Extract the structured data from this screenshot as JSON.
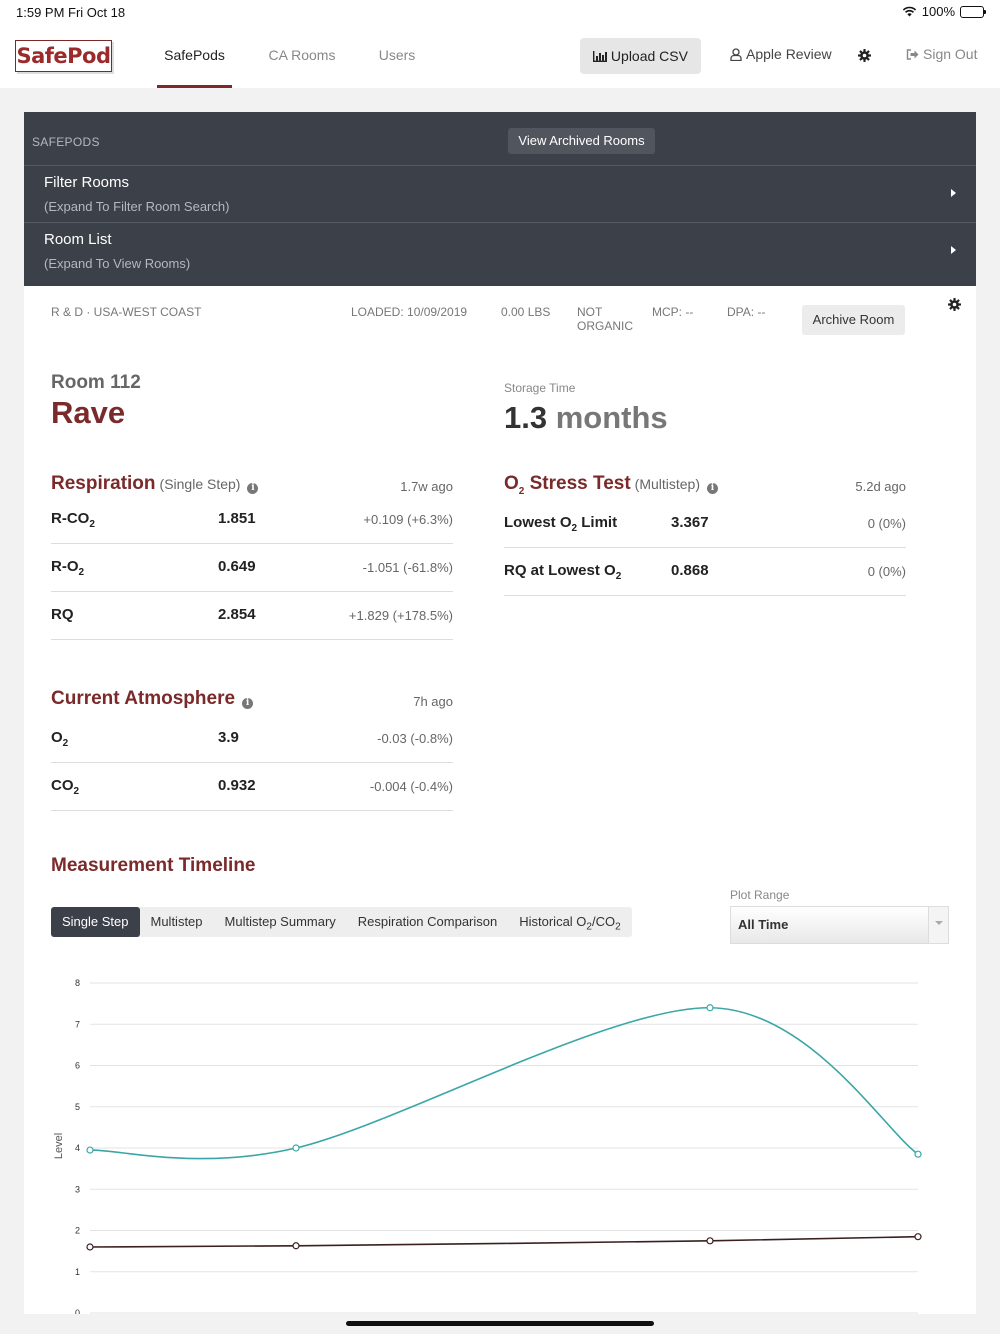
{
  "status": {
    "time": "1:59 PM   Fri Oct 18",
    "battery": "100%"
  },
  "nav": {
    "logo": "SafePod",
    "tabs": [
      {
        "label": "SafePods"
      },
      {
        "label": "CA Rooms"
      },
      {
        "label": "Users"
      }
    ],
    "upload_label": "Upload CSV",
    "apple_review": "Apple Review",
    "sign_out": "Sign Out"
  },
  "panel": {
    "label": "SAFEPODS",
    "archived_button": "View Archived Rooms",
    "rows": [
      {
        "title": "Filter Rooms",
        "sub": "(Expand To Filter Room Search)"
      },
      {
        "title": "Room List",
        "sub": "(Expand To View Rooms)"
      }
    ]
  },
  "room": {
    "location": "R & D · USA-WEST COAST",
    "loaded": "LOADED: 10/09/2019",
    "weight": "0.00 LBS",
    "organic_line1": "NOT",
    "organic_line2": "ORGANIC",
    "mcp": "MCP: --",
    "dpa": "DPA: --",
    "archive_button": "Archive Room",
    "number": "Room 112",
    "name": "Rave",
    "storage_label": "Storage Time",
    "storage_value": "1.3",
    "storage_unit": "months"
  },
  "respiration": {
    "title": "Respiration",
    "qualifier": "(Single Step)",
    "ago": "1.7w ago",
    "rows": [
      {
        "label": "R-CO",
        "sub": "2",
        "value": "1.851",
        "change": "+0.109 (+6.3%)"
      },
      {
        "label": "R-O",
        "sub": "2",
        "value": "0.649",
        "change": "-1.051 (-61.8%)"
      },
      {
        "label": "RQ",
        "sub": "",
        "value": "2.854",
        "change": "+1.829 (+178.5%)"
      }
    ]
  },
  "stress": {
    "title_pre": "O",
    "title_sub": "2",
    "title_post": " Stress Test",
    "qualifier": "(Multistep)",
    "ago": "5.2d ago",
    "rows": [
      {
        "label_pre": "Lowest O",
        "sub": "2",
        "label_post": " Limit",
        "value": "3.367",
        "change": "0 (0%)"
      },
      {
        "label_pre": "RQ at Lowest O",
        "sub": "2",
        "label_post": "",
        "value": "0.868",
        "change": "0 (0%)"
      }
    ]
  },
  "atmosphere": {
    "title": "Current Atmosphere",
    "ago": "7h ago",
    "rows": [
      {
        "label": "O",
        "sub": "2",
        "value": "3.9",
        "change": "-0.03 (-0.8%)"
      },
      {
        "label": "CO",
        "sub": "2",
        "value": "0.932",
        "change": "-0.004 (-0.4%)"
      }
    ]
  },
  "timeline": {
    "title": "Measurement Timeline",
    "tabs": [
      "Single Step",
      "Multistep",
      "Multistep Summary",
      "Respiration Comparison",
      "Historical O2/CO2"
    ],
    "active_tab": 0,
    "plot_range_label": "Plot Range",
    "plot_range_value": "All Time"
  },
  "chart_data": {
    "type": "line",
    "ylabel": "Level",
    "ylim": [
      0,
      8
    ],
    "yticks": [
      0,
      1,
      2,
      3,
      4,
      5,
      6,
      7,
      8
    ],
    "grid": true,
    "x": [
      0,
      1,
      2,
      3
    ],
    "series": [
      {
        "values": [
          3.95,
          4.0,
          7.4,
          3.85
        ],
        "color": "#3aa6a6"
      },
      {
        "values": [
          1.6,
          1.63,
          1.75,
          1.85
        ],
        "color": "#3a2020"
      }
    ]
  }
}
